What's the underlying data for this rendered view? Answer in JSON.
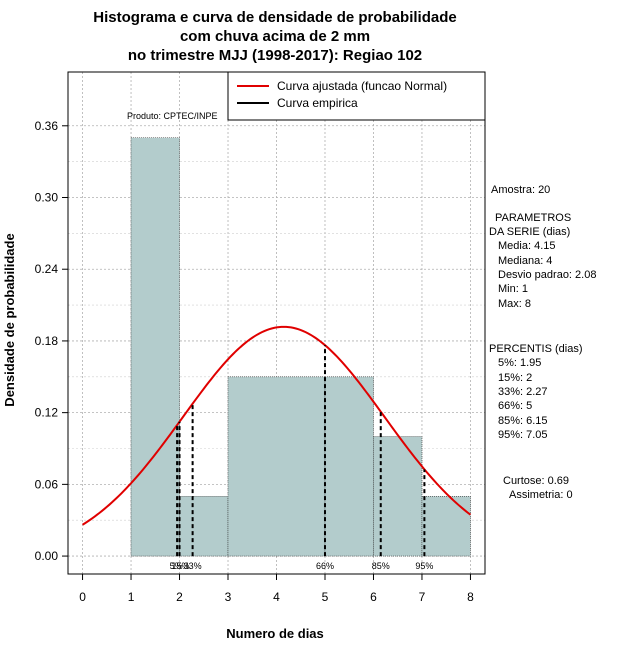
{
  "chart_data": {
    "type": "bar",
    "title_lines": [
      "Histograma e curva de densidade de probabilidade",
      "com chuva acima de 2 mm",
      "no trimestre MJJ (1998-2017): Regiao 102"
    ],
    "xlabel": "Numero de dias",
    "ylabel": "Densidade de probabilidade",
    "xlim": [
      -0.3,
      8.3
    ],
    "ylim": [
      -0.015,
      0.405
    ],
    "x_ticks": [
      0,
      1,
      2,
      3,
      4,
      5,
      6,
      7,
      8
    ],
    "x_tick_labels": [
      "0",
      "1",
      "2",
      "3",
      "4",
      "5",
      "6",
      "7",
      "8"
    ],
    "y_ticks": [
      0.0,
      0.06,
      0.12,
      0.18,
      0.24,
      0.3,
      0.36
    ],
    "y_tick_labels": [
      "0.00",
      "0.06",
      "0.12",
      "0.18",
      "0.24",
      "0.30",
      "0.36"
    ],
    "bars": [
      {
        "x0": 1,
        "x1": 2,
        "value": 0.35
      },
      {
        "x0": 2,
        "x1": 3,
        "value": 0.05
      },
      {
        "x0": 3,
        "x1": 5,
        "value": 0.15
      },
      {
        "x0": 5,
        "x1": 6,
        "value": 0.15
      },
      {
        "x0": 6,
        "x1": 7,
        "value": 0.1
      },
      {
        "x0": 7,
        "x1": 8,
        "value": 0.05
      }
    ],
    "normal_curve": {
      "mean": 4.15,
      "sd": 2.08,
      "x_from": 0,
      "x_to": 8
    },
    "percentile_markers": [
      {
        "label": "5%",
        "x": 1.95
      },
      {
        "label": "15%",
        "x": 2.0
      },
      {
        "label": "33%",
        "x": 2.27
      },
      {
        "label": "66%",
        "x": 5.0
      },
      {
        "label": "85%",
        "x": 6.15
      },
      {
        "label": "95%",
        "x": 7.05
      }
    ],
    "percentile_labels_text": [
      "5%",
      "15%",
      "33%",
      "66%",
      "85%",
      "95%"
    ],
    "legend": {
      "position": "top-right",
      "items": [
        {
          "label": "Curva ajustada (funcao Normal)",
          "color": "#e00000"
        },
        {
          "label": "Curva empirica",
          "color": "#000000"
        }
      ]
    },
    "source_note": "Produto: CPTEC/INPE",
    "colors": {
      "bar_fill": "#b3cccc",
      "curve": "#e00000",
      "grid": "#b0b0b0"
    }
  },
  "stats_panel": {
    "amostra": "Amostra: 20",
    "param_header_1": "PARAMETROS",
    "param_header_2": "DA SERIE (dias)",
    "media": "Media: 4.15",
    "mediana": "Mediana: 4",
    "desvio": "Desvio padrao: 2.08",
    "min": "Min: 1",
    "max": "Max: 8",
    "percentis_header": "PERCENTIS (dias)",
    "p5": "5%: 1.95",
    "p15": "15%: 2",
    "p33": "33%: 2.27",
    "p66": "66%: 5",
    "p85": "85%: 6.15",
    "p95": "95%: 7.05",
    "curtose": "Curtose: 0.69",
    "assimetria": "Assimetria: 0"
  }
}
